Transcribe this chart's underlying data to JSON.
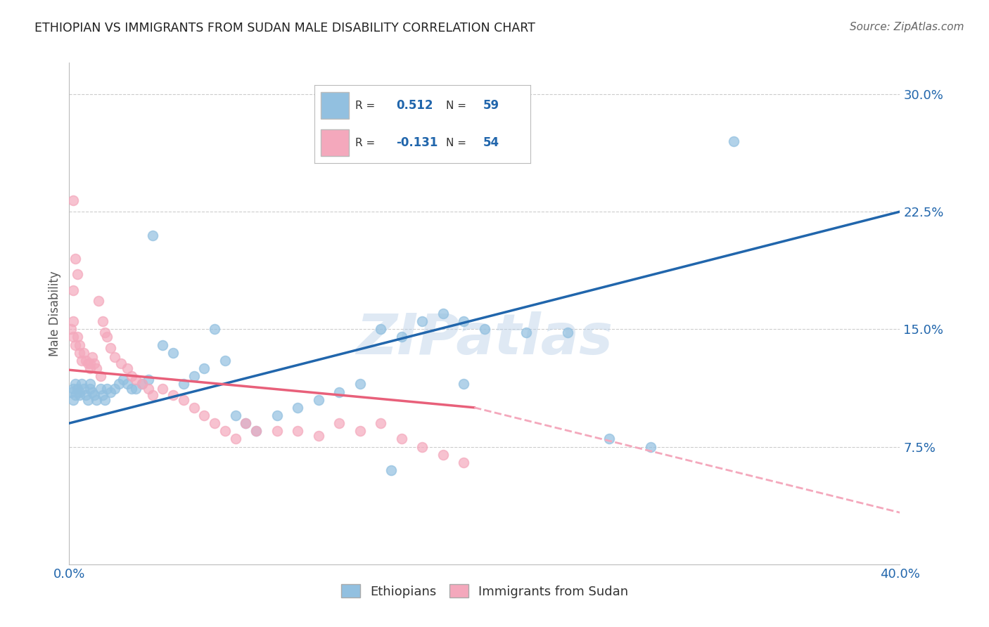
{
  "title": "ETHIOPIAN VS IMMIGRANTS FROM SUDAN MALE DISABILITY CORRELATION CHART",
  "source": "Source: ZipAtlas.com",
  "ylabel_label": "Male Disability",
  "x_min": 0.0,
  "x_max": 0.4,
  "y_min": 0.0,
  "y_max": 0.32,
  "x_ticks": [
    0.0,
    0.1,
    0.2,
    0.3,
    0.4
  ],
  "x_tick_labels": [
    "0.0%",
    "",
    "",
    "",
    "40.0%"
  ],
  "y_ticks": [
    0.075,
    0.15,
    0.225,
    0.3
  ],
  "y_tick_labels": [
    "7.5%",
    "15.0%",
    "22.5%",
    "30.0%"
  ],
  "grid_color": "#cccccc",
  "background_color": "#ffffff",
  "ethiopian_color": "#92c0e0",
  "sudan_color": "#f4a8bc",
  "ethiopian_line_color": "#2166ac",
  "sudan_line_color": "#e8607a",
  "sudan_dash_color": "#f4a8bc",
  "R_ethiopian": 0.512,
  "N_ethiopian": 59,
  "R_sudan": -0.131,
  "N_sudan": 54,
  "legend_label_1": "Ethiopians",
  "legend_label_2": "Immigrants from Sudan",
  "watermark": "ZIPatlas",
  "eth_line_x0": 0.0,
  "eth_line_y0": 0.09,
  "eth_line_x1": 0.4,
  "eth_line_y1": 0.225,
  "sud_line_x0": 0.0,
  "sud_line_y0": 0.124,
  "sud_line_xend_solid": 0.195,
  "sud_line_yend_solid": 0.1,
  "sud_line_x1": 0.4,
  "sud_line_y1": 0.033,
  "ethiopians_x": [
    0.001,
    0.002,
    0.002,
    0.003,
    0.003,
    0.004,
    0.005,
    0.005,
    0.006,
    0.007,
    0.008,
    0.009,
    0.01,
    0.01,
    0.011,
    0.012,
    0.013,
    0.015,
    0.016,
    0.017,
    0.018,
    0.02,
    0.022,
    0.024,
    0.026,
    0.028,
    0.03,
    0.032,
    0.035,
    0.038,
    0.04,
    0.045,
    0.05,
    0.055,
    0.06,
    0.065,
    0.07,
    0.075,
    0.08,
    0.085,
    0.09,
    0.1,
    0.11,
    0.12,
    0.13,
    0.14,
    0.15,
    0.16,
    0.17,
    0.18,
    0.19,
    0.2,
    0.22,
    0.24,
    0.26,
    0.28,
    0.19,
    0.32,
    0.155
  ],
  "ethiopians_y": [
    0.11,
    0.105,
    0.112,
    0.108,
    0.115,
    0.112,
    0.11,
    0.108,
    0.115,
    0.112,
    0.108,
    0.105,
    0.112,
    0.115,
    0.11,
    0.108,
    0.105,
    0.112,
    0.108,
    0.105,
    0.112,
    0.11,
    0.112,
    0.115,
    0.118,
    0.115,
    0.112,
    0.112,
    0.115,
    0.118,
    0.21,
    0.14,
    0.135,
    0.115,
    0.12,
    0.125,
    0.15,
    0.13,
    0.095,
    0.09,
    0.085,
    0.095,
    0.1,
    0.105,
    0.11,
    0.115,
    0.15,
    0.145,
    0.155,
    0.16,
    0.155,
    0.15,
    0.148,
    0.148,
    0.08,
    0.075,
    0.115,
    0.27,
    0.06
  ],
  "sudan_x": [
    0.001,
    0.002,
    0.002,
    0.003,
    0.004,
    0.005,
    0.005,
    0.006,
    0.007,
    0.008,
    0.009,
    0.01,
    0.01,
    0.011,
    0.012,
    0.013,
    0.015,
    0.016,
    0.017,
    0.018,
    0.02,
    0.022,
    0.025,
    0.028,
    0.03,
    0.032,
    0.035,
    0.038,
    0.04,
    0.045,
    0.05,
    0.055,
    0.06,
    0.065,
    0.07,
    0.075,
    0.08,
    0.085,
    0.09,
    0.1,
    0.11,
    0.12,
    0.13,
    0.14,
    0.15,
    0.16,
    0.17,
    0.18,
    0.19,
    0.002,
    0.003,
    0.004,
    0.014,
    0.002
  ],
  "sudan_y": [
    0.15,
    0.145,
    0.155,
    0.14,
    0.145,
    0.135,
    0.14,
    0.13,
    0.135,
    0.13,
    0.128,
    0.125,
    0.128,
    0.132,
    0.128,
    0.125,
    0.12,
    0.155,
    0.148,
    0.145,
    0.138,
    0.132,
    0.128,
    0.125,
    0.12,
    0.118,
    0.115,
    0.112,
    0.108,
    0.112,
    0.108,
    0.105,
    0.1,
    0.095,
    0.09,
    0.085,
    0.08,
    0.09,
    0.085,
    0.085,
    0.085,
    0.082,
    0.09,
    0.085,
    0.09,
    0.08,
    0.075,
    0.07,
    0.065,
    0.175,
    0.195,
    0.185,
    0.168,
    0.232
  ]
}
